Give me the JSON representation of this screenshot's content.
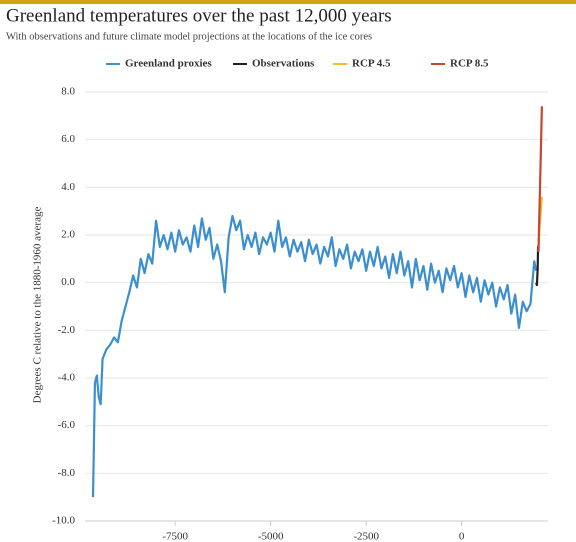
{
  "chart_data": {
    "type": "line",
    "title": "Greenland temperatures over the past 12,000 years",
    "subtitle": "With observations and future climate model projections at the locations of the ice cores",
    "y_label": "Degrees C relative to the 1880-1960 average",
    "xlim": [
      -9860,
      2260
    ],
    "xticks": [
      -7500,
      -5000,
      -2500,
      0
    ],
    "ylim": [
      -10,
      8
    ],
    "yticks": [
      {
        "value": -10,
        "label": "-10.0"
      },
      {
        "value": -8,
        "label": "-8.0"
      },
      {
        "value": -6,
        "label": "-6.0"
      },
      {
        "value": -4,
        "label": "-4.0"
      },
      {
        "value": -2,
        "label": "-2.0"
      },
      {
        "value": 0,
        "label": "0.0"
      },
      {
        "value": 2,
        "label": "2.0"
      },
      {
        "value": 4,
        "label": "4.0"
      },
      {
        "value": 6,
        "label": "6.0"
      },
      {
        "value": 8,
        "label": "8.0"
      }
    ],
    "grid": true,
    "series": [
      {
        "name": "Greenland proxies",
        "color": "#3b8fd0",
        "x": [
          -9650,
          -9600,
          -9550,
          -9500,
          -9450,
          -9400,
          -9300,
          -9200,
          -9100,
          -9000,
          -8900,
          -8800,
          -8700,
          -8600,
          -8500,
          -8400,
          -8300,
          -8200,
          -8100,
          -8000,
          -7900,
          -7800,
          -7700,
          -7600,
          -7500,
          -7400,
          -7300,
          -7200,
          -7100,
          -7000,
          -6900,
          -6800,
          -6700,
          -6600,
          -6500,
          -6400,
          -6300,
          -6200,
          -6100,
          -6000,
          -5900,
          -5800,
          -5700,
          -5600,
          -5500,
          -5400,
          -5300,
          -5200,
          -5100,
          -5000,
          -4900,
          -4800,
          -4700,
          -4600,
          -4500,
          -4400,
          -4300,
          -4200,
          -4100,
          -4000,
          -3900,
          -3800,
          -3700,
          -3600,
          -3500,
          -3400,
          -3300,
          -3200,
          -3100,
          -3000,
          -2900,
          -2800,
          -2700,
          -2600,
          -2500,
          -2400,
          -2300,
          -2200,
          -2100,
          -2000,
          -1900,
          -1800,
          -1700,
          -1600,
          -1500,
          -1400,
          -1300,
          -1200,
          -1100,
          -1000,
          -900,
          -800,
          -700,
          -600,
          -500,
          -400,
          -300,
          -200,
          -100,
          0,
          100,
          200,
          300,
          400,
          500,
          600,
          700,
          800,
          900,
          1000,
          1100,
          1200,
          1300,
          1400,
          1500,
          1600,
          1700,
          1800,
          1900,
          1950
        ],
        "values": [
          -9.0,
          -4.2,
          -3.9,
          -4.8,
          -5.1,
          -3.2,
          -2.8,
          -2.6,
          -2.3,
          -2.5,
          -1.6,
          -1.0,
          -0.4,
          0.3,
          -0.2,
          1.0,
          0.4,
          1.2,
          0.8,
          2.6,
          1.5,
          2.0,
          1.4,
          2.1,
          1.3,
          2.2,
          1.6,
          1.9,
          1.3,
          2.4,
          1.5,
          2.7,
          1.8,
          2.3,
          1.0,
          1.6,
          0.9,
          -0.4,
          1.9,
          2.8,
          2.2,
          2.6,
          1.4,
          2.0,
          1.5,
          2.1,
          1.2,
          1.9,
          1.6,
          2.1,
          1.3,
          2.6,
          1.5,
          1.9,
          1.1,
          1.8,
          1.3,
          1.7,
          0.9,
          1.8,
          1.2,
          1.6,
          0.8,
          1.5,
          1.1,
          1.9,
          0.7,
          1.4,
          1.0,
          1.6,
          0.6,
          1.3,
          0.9,
          1.4,
          0.5,
          1.3,
          0.7,
          1.5,
          0.6,
          1.1,
          0.2,
          1.2,
          0.4,
          1.3,
          0.3,
          0.9,
          -0.2,
          1.0,
          0.1,
          0.7,
          -0.3,
          0.8,
          0.0,
          0.5,
          -0.4,
          0.6,
          0.1,
          0.7,
          -0.2,
          0.4,
          -0.6,
          0.3,
          -0.4,
          0.2,
          -0.8,
          0.1,
          -0.5,
          0.0,
          -1.0,
          -0.2,
          -0.7,
          -0.1,
          -1.3,
          -0.5,
          -1.9,
          -0.8,
          -1.2,
          -0.9,
          0.9,
          0.5
        ]
      },
      {
        "name": "Observations",
        "color": "#222222",
        "x": [
          1950,
          1970,
          1990,
          2000,
          2010
        ],
        "values": [
          0.0,
          -0.1,
          0.6,
          1.5,
          1.3
        ]
      },
      {
        "name": "RCP 4.5",
        "color": "#f2bb2e",
        "x": [
          2010,
          2040,
          2070,
          2100
        ],
        "values": [
          1.3,
          2.4,
          3.0,
          3.6
        ]
      },
      {
        "name": "RCP 8.5",
        "color": "#c6472e",
        "x": [
          2010,
          2040,
          2070,
          2100
        ],
        "values": [
          1.3,
          3.3,
          5.3,
          7.4
        ]
      }
    ]
  }
}
